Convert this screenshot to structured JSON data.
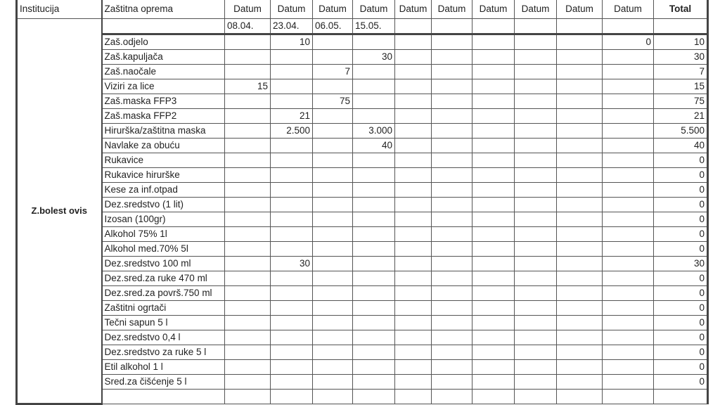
{
  "header": {
    "institution_label": "Institucija",
    "equipment_label": "Zaštitna oprema",
    "date_labels": [
      "Datum",
      "Datum",
      "Datum",
      "Datum",
      "Datum",
      "Datum",
      "Datum",
      "Datum",
      "Datum",
      "Datum"
    ],
    "total_label": "Total",
    "dates": [
      "08.04.",
      "23.04.",
      "06.05.",
      "15.05.",
      "",
      "",
      "",
      "",
      "",
      ""
    ]
  },
  "institution": "Z.bolest ovis",
  "rows": [
    {
      "item": "Zaš.odjelo",
      "values": [
        "",
        "10",
        "",
        "",
        "",
        "",
        "",
        "",
        "",
        "0"
      ],
      "total": "10"
    },
    {
      "item": "Zaš.kapuljača",
      "values": [
        "",
        "",
        "",
        "30",
        "",
        "",
        "",
        "",
        "",
        ""
      ],
      "total": "30"
    },
    {
      "item": "Zaš.naočale",
      "values": [
        "",
        "",
        "7",
        "",
        "",
        "",
        "",
        "",
        "",
        ""
      ],
      "total": "7"
    },
    {
      "item": "Viziri za lice",
      "values": [
        "15",
        "",
        "",
        "",
        "",
        "",
        "",
        "",
        "",
        ""
      ],
      "total": "15"
    },
    {
      "item": "Zaš.maska FFP3",
      "values": [
        "",
        "",
        "75",
        "",
        "",
        "",
        "",
        "",
        "",
        ""
      ],
      "total": "75"
    },
    {
      "item": "Zaš.maska FFP2",
      "values": [
        "",
        "21",
        "",
        "",
        "",
        "",
        "",
        "",
        "",
        ""
      ],
      "total": "21"
    },
    {
      "item": "Hirurška/zaštitna maska",
      "values": [
        "",
        "2.500",
        "",
        "3.000",
        "",
        "",
        "",
        "",
        "",
        ""
      ],
      "total": "5.500"
    },
    {
      "item": "Navlake za obuću",
      "values": [
        "",
        "",
        "",
        "40",
        "",
        "",
        "",
        "",
        "",
        ""
      ],
      "total": "40"
    },
    {
      "item": "Rukavice",
      "values": [
        "",
        "",
        "",
        "",
        "",
        "",
        "",
        "",
        "",
        ""
      ],
      "total": "0"
    },
    {
      "item": "Rukavice hirurške",
      "values": [
        "",
        "",
        "",
        "",
        "",
        "",
        "",
        "",
        "",
        ""
      ],
      "total": "0"
    },
    {
      "item": "Kese za inf.otpad",
      "values": [
        "",
        "",
        "",
        "",
        "",
        "",
        "",
        "",
        "",
        ""
      ],
      "total": "0"
    },
    {
      "item": "Dez.sredstvo (1 lit)",
      "values": [
        "",
        "",
        "",
        "",
        "",
        "",
        "",
        "",
        "",
        ""
      ],
      "total": "0"
    },
    {
      "item": "Izosan (100gr)",
      "values": [
        "",
        "",
        "",
        "",
        "",
        "",
        "",
        "",
        "",
        ""
      ],
      "total": "0"
    },
    {
      "item": "Alkohol 75% 1l",
      "values": [
        "",
        "",
        "",
        "",
        "",
        "",
        "",
        "",
        "",
        ""
      ],
      "total": "0"
    },
    {
      "item": "Alkohol med.70%  5l",
      "values": [
        "",
        "",
        "",
        "",
        "",
        "",
        "",
        "",
        "",
        ""
      ],
      "total": "0"
    },
    {
      "item": "Dez.sredstvo 100 ml",
      "values": [
        "",
        "30",
        "",
        "",
        "",
        "",
        "",
        "",
        "",
        ""
      ],
      "total": "30"
    },
    {
      "item": "Dez.sred.za ruke 470 ml",
      "values": [
        "",
        "",
        "",
        "",
        "",
        "",
        "",
        "",
        "",
        ""
      ],
      "total": "0"
    },
    {
      "item": "Dez.sred.za površ.750 ml",
      "values": [
        "",
        "",
        "",
        "",
        "",
        "",
        "",
        "",
        "",
        ""
      ],
      "total": "0"
    },
    {
      "item": "Zaštitni ogrtači",
      "values": [
        "",
        "",
        "",
        "",
        "",
        "",
        "",
        "",
        "",
        ""
      ],
      "total": "0"
    },
    {
      "item": "Tečni sapun 5 l",
      "values": [
        "",
        "",
        "",
        "",
        "",
        "",
        "",
        "",
        "",
        ""
      ],
      "total": "0"
    },
    {
      "item": "Dez.sredstvo 0,4 l",
      "values": [
        "",
        "",
        "",
        "",
        "",
        "",
        "",
        "",
        "",
        ""
      ],
      "total": "0"
    },
    {
      "item": "Dez.sredstvo za ruke 5 l",
      "values": [
        "",
        "",
        "",
        "",
        "",
        "",
        "",
        "",
        "",
        ""
      ],
      "total": "0"
    },
    {
      "item": "Etil alkohol 1 l",
      "values": [
        "",
        "",
        "",
        "",
        "",
        "",
        "",
        "",
        "",
        ""
      ],
      "total": "0"
    },
    {
      "item": "Sred.za čišćenje 5 l",
      "values": [
        "",
        "",
        "",
        "",
        "",
        "",
        "",
        "",
        "",
        ""
      ],
      "total": "0"
    }
  ]
}
